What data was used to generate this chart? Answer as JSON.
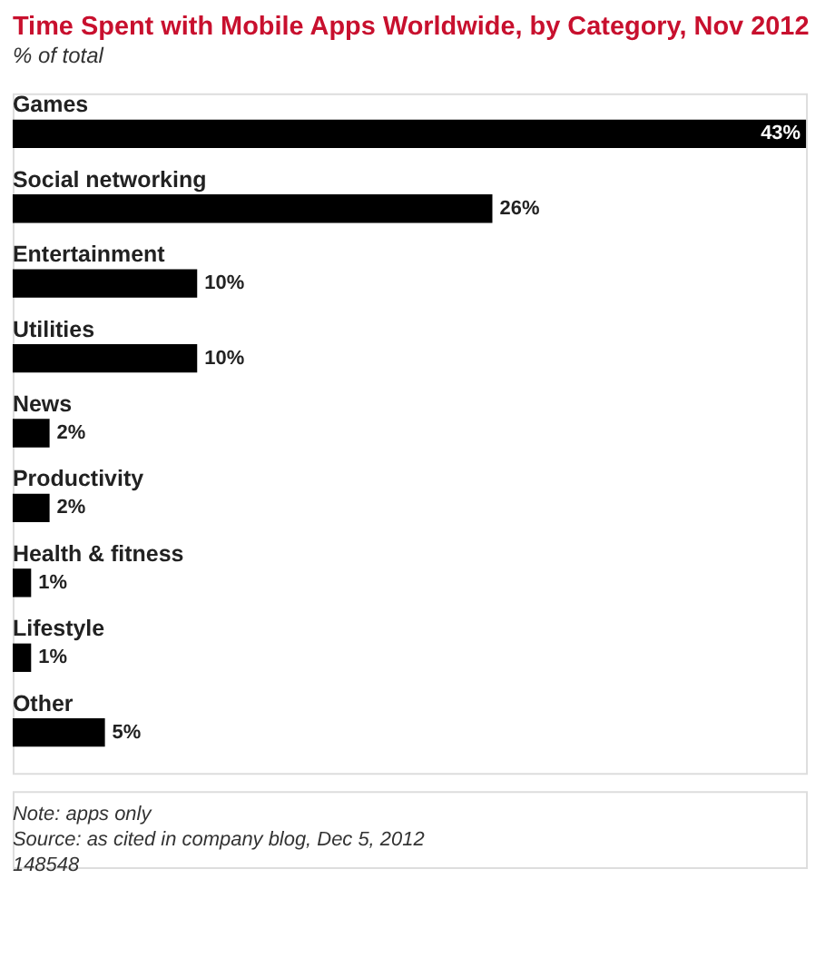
{
  "chart_data": {
    "type": "bar",
    "orientation": "horizontal",
    "title": "Time Spent with Mobile Apps Worldwide, by Category, Nov 2012",
    "subtitle": "% of total",
    "categories": [
      "Games",
      "Social networking",
      "Entertainment",
      "Utilities",
      "News",
      "Productivity",
      "Health & fitness",
      "Lifestyle",
      "Other"
    ],
    "values": [
      43,
      26,
      10,
      10,
      2,
      2,
      1,
      1,
      5
    ],
    "value_labels": [
      "43%",
      "26%",
      "10%",
      "10%",
      "2%",
      "2%",
      "1%",
      "1%",
      "5%"
    ],
    "color": "#000000",
    "annotations": [
      "Note: apps only",
      "Source: as cited in company blog, Dec 5, 2012",
      "148548"
    ]
  }
}
